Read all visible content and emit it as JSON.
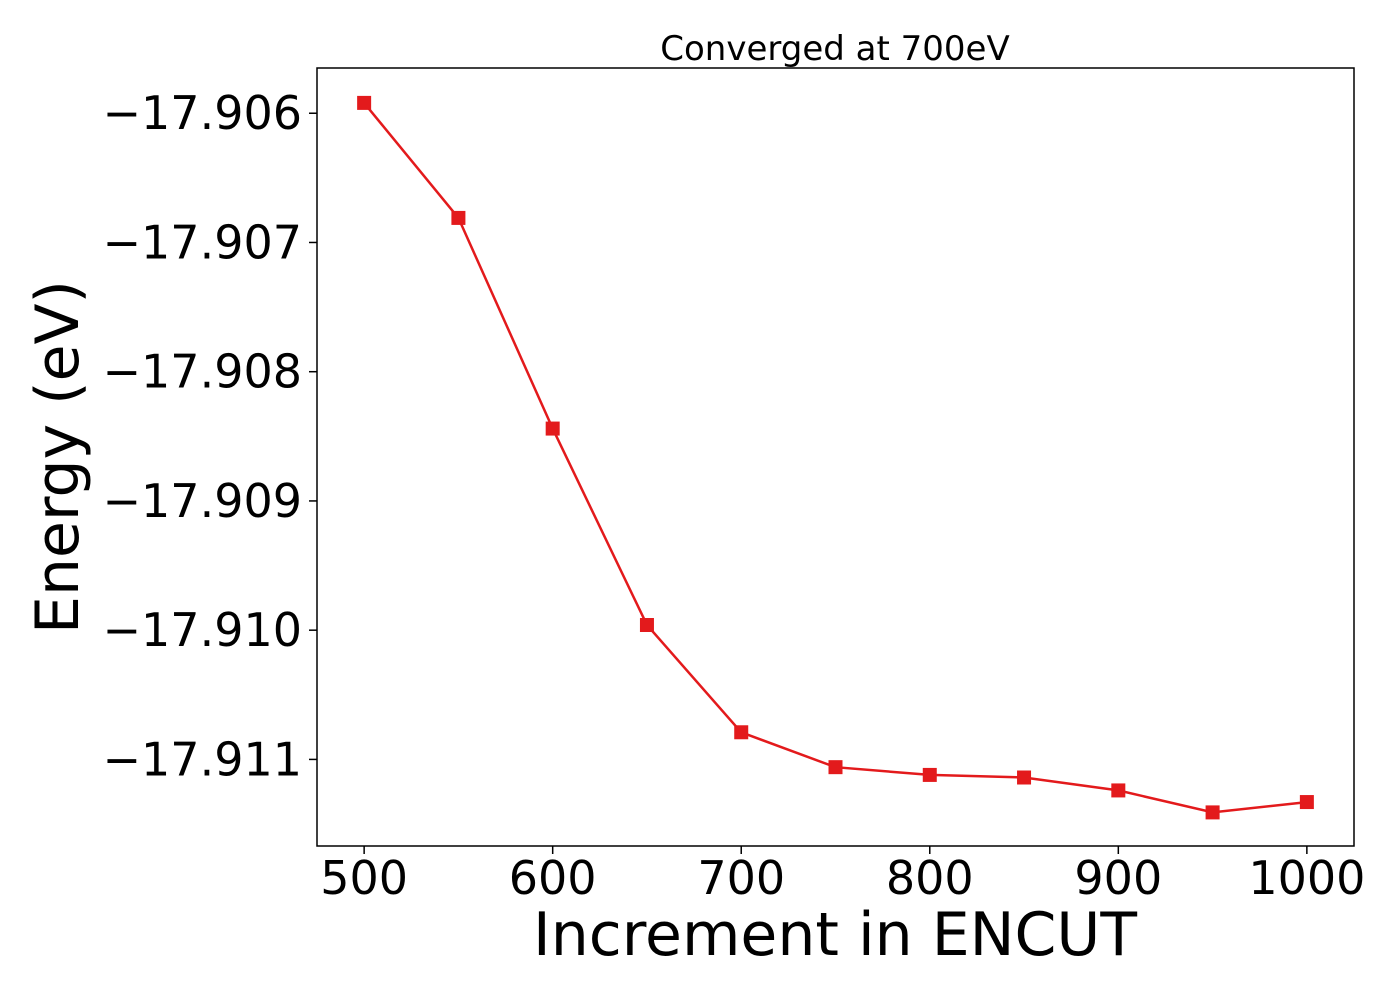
{
  "chart_data": {
    "type": "line",
    "title": "Converged at 700eV",
    "xlabel": "Increment in ENCUT",
    "ylabel": "Energy (eV)",
    "x": [
      500,
      550,
      600,
      650,
      700,
      750,
      800,
      850,
      900,
      950,
      1000
    ],
    "series": [
      {
        "values": [
          -17.90592,
          -17.90681,
          -17.90844,
          -17.90996,
          -17.91079,
          -17.91106,
          -17.91112,
          -17.91114,
          -17.91124,
          -17.91141,
          -17.91133
        ],
        "color": "#e31a1c",
        "marker": "square"
      }
    ],
    "xlim": [
      475,
      1025
    ],
    "ylim": [
      -17.91167,
      -17.90565
    ],
    "xticks": [
      500,
      600,
      700,
      800,
      900,
      1000
    ],
    "xtick_labels": [
      "500",
      "600",
      "700",
      "800",
      "900",
      "1000"
    ],
    "yticks": [
      -17.906,
      -17.907,
      -17.908,
      -17.909,
      -17.91,
      -17.911
    ],
    "ytick_labels": [
      "−17.906",
      "−17.907",
      "−17.908",
      "−17.909",
      "−17.910",
      "−17.911"
    ],
    "grid": false,
    "legend": "none"
  }
}
